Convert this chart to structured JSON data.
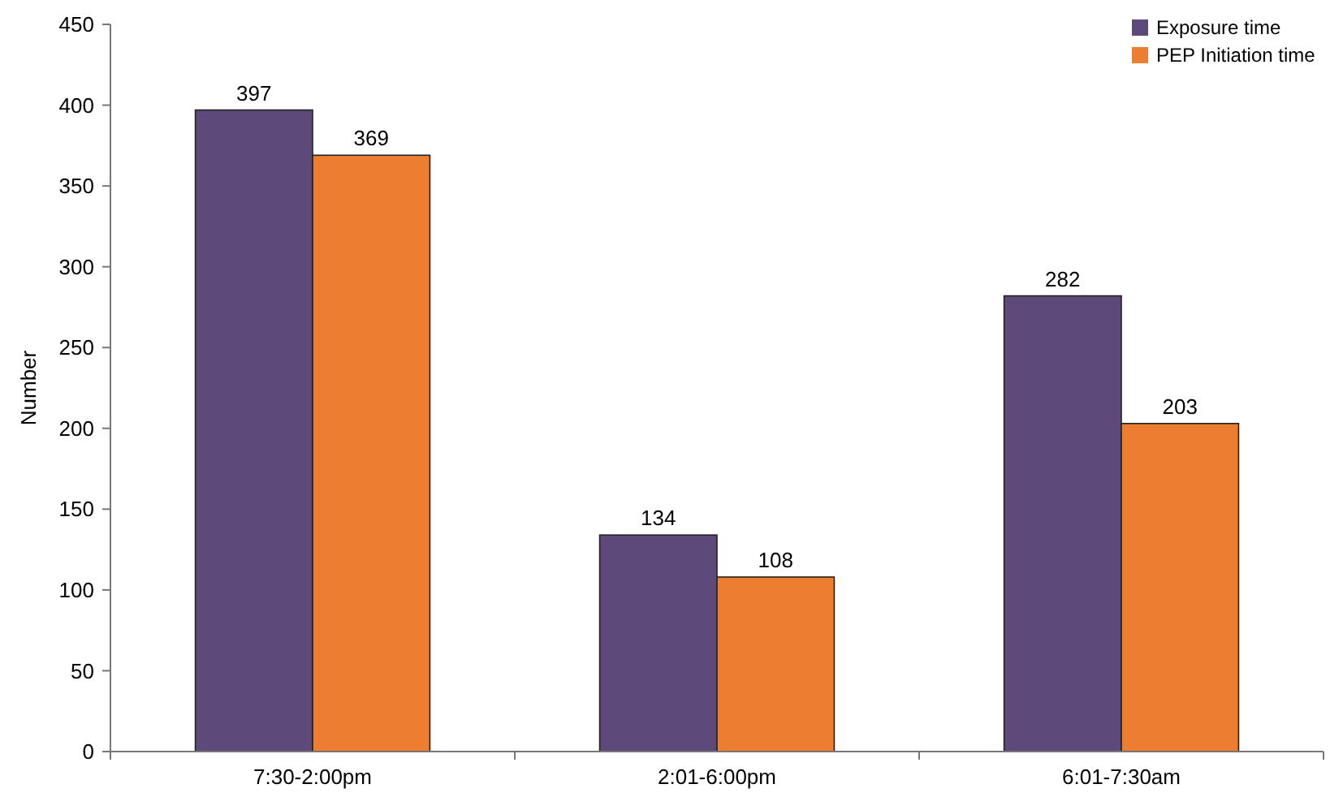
{
  "chart_data": {
    "type": "bar",
    "ylabel": "Number",
    "categories": [
      "7:30-2:00pm",
      "2:01-6:00pm",
      "6:01-7:30am"
    ],
    "series": [
      {
        "name": "Exposure time",
        "color": "#5e4a7a",
        "values": [
          397,
          134,
          282
        ]
      },
      {
        "name": "PEP Initiation time",
        "color": "#ed7d31",
        "values": [
          369,
          108,
          203
        ]
      }
    ],
    "ylim": [
      0,
      450
    ],
    "yticks": [
      0,
      50,
      100,
      150,
      200,
      250,
      300,
      350,
      400,
      450
    ],
    "grid": false,
    "legend": "top right",
    "data_labels": true
  }
}
